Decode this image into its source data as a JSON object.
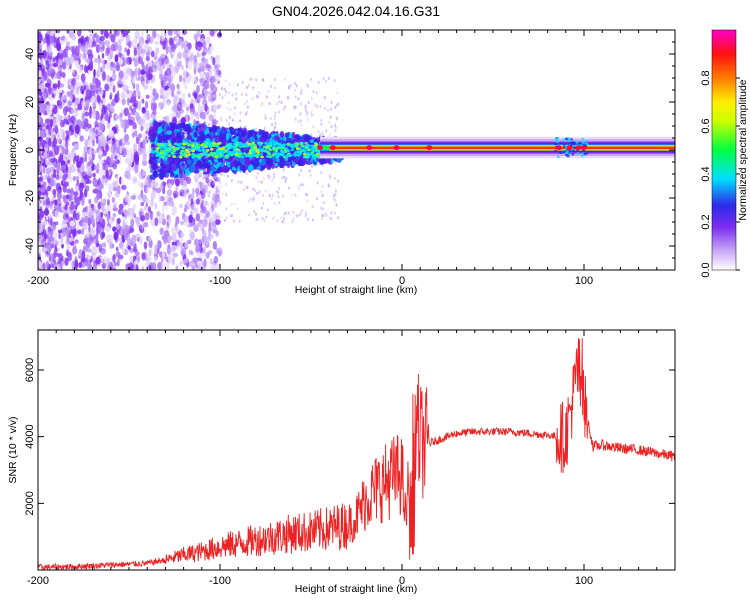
{
  "title": "GN04.2026.042.04.16.G31",
  "chart_data": [
    {
      "type": "heatmap",
      "xlabel": "Height of straight line (km)",
      "ylabel": "Frequency (Hz)",
      "xlim": [
        -200,
        150
      ],
      "ylim": [
        -50,
        50
      ],
      "x_ticks": [
        -200,
        -100,
        0,
        100
      ],
      "y_ticks": [
        -40,
        -20,
        0,
        20,
        40
      ],
      "colorbar": {
        "label": "Normalized spectral amplitude",
        "range": [
          0,
          1
        ],
        "ticks": [
          "0.0",
          "0.2",
          "0.4",
          "0.6",
          "0.8"
        ],
        "colors": [
          "#ffffff",
          "#9b59f5",
          "#3a1ee8",
          "#00e5ff",
          "#00ff00",
          "#ffff00",
          "#ff6600",
          "#ff0000",
          "#ff00cc"
        ]
      },
      "features": {
        "noise_region_x": [
          -200,
          -110
        ],
        "signal_start_x": -138,
        "signal_center_freq_hz": 0,
        "strong_line_start_x": -45
      }
    },
    {
      "type": "line",
      "xlabel": "Height of straight line (km)",
      "ylabel": "SNR (10 * v/v)",
      "xlim": [
        -200,
        150
      ],
      "ylim": [
        0,
        7200
      ],
      "x_ticks": [
        -200,
        -100,
        0,
        100
      ],
      "y_ticks": [
        2000,
        4000,
        6000
      ],
      "series": [
        {
          "color": "#ee2222",
          "x": [
            -200,
            -180,
            -160,
            -140,
            -130,
            -120,
            -110,
            -100,
            -90,
            -80,
            -70,
            -60,
            -50,
            -40,
            -30,
            -25,
            -20,
            -15,
            -10,
            -5,
            0,
            2,
            5,
            8,
            10,
            12,
            15,
            20,
            25,
            30,
            40,
            50,
            60,
            70,
            80,
            85,
            90,
            95,
            98,
            100,
            105,
            110,
            120,
            130,
            140,
            150
          ],
          "y": [
            80,
            100,
            150,
            200,
            300,
            450,
            550,
            700,
            800,
            900,
            1000,
            1100,
            1150,
            1250,
            1350,
            1600,
            2100,
            2400,
            2600,
            2800,
            2900,
            1500,
            3500,
            4300,
            3900,
            3800,
            3800,
            3900,
            4000,
            4100,
            4150,
            4150,
            4150,
            4100,
            4050,
            4000,
            4000,
            5500,
            6800,
            5000,
            3700,
            3750,
            3650,
            3600,
            3500,
            3400
          ]
        }
      ]
    }
  ]
}
